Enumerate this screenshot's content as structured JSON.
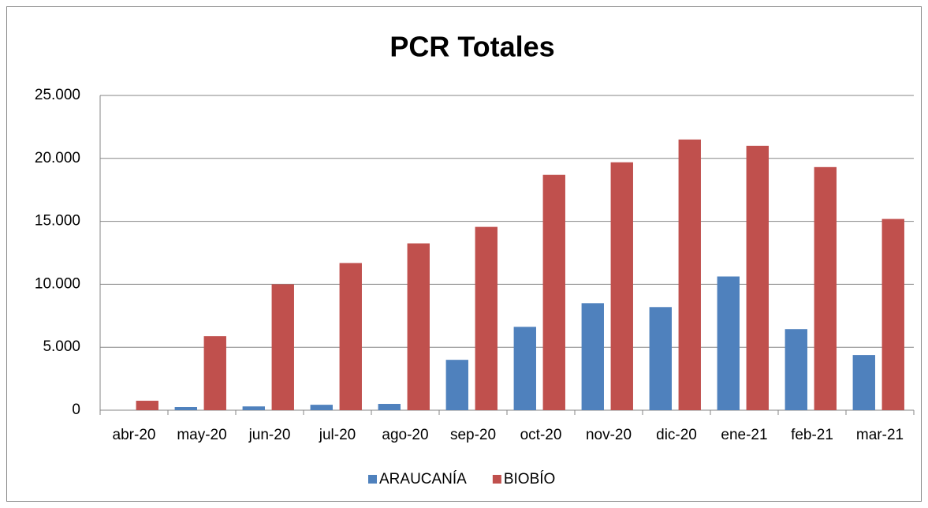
{
  "chart_data": {
    "type": "bar",
    "title": "PCR Totales",
    "categories": [
      "abr-20",
      "may-20",
      "jun-20",
      "jul-20",
      "ago-20",
      "sep-20",
      "oct-20",
      "nov-20",
      "dic-20",
      "ene-21",
      "feb-21",
      "mar-21"
    ],
    "series": [
      {
        "name": "ARAUCANÍA",
        "color": "#4f81bd",
        "values": [
          0,
          250,
          300,
          430,
          500,
          4000,
          6620,
          8500,
          8190,
          10620,
          6440,
          4380
        ]
      },
      {
        "name": "BIOBÍO",
        "color": "#c0504d",
        "values": [
          750,
          5880,
          10000,
          11690,
          13250,
          14560,
          18690,
          19690,
          21500,
          21000,
          19310,
          15190
        ]
      }
    ],
    "ylim": [
      0,
      25000
    ],
    "yticks": [
      0,
      {
        "value": 5000,
        "label": "5.000"
      },
      {
        "value": 10000,
        "label": "10.000"
      },
      {
        "value": 15000,
        "label": "15.000"
      },
      {
        "value": 20000,
        "label": "20.000"
      },
      {
        "value": 25000,
        "label": "25.000"
      }
    ],
    "grid": true,
    "legend": "bottom"
  }
}
